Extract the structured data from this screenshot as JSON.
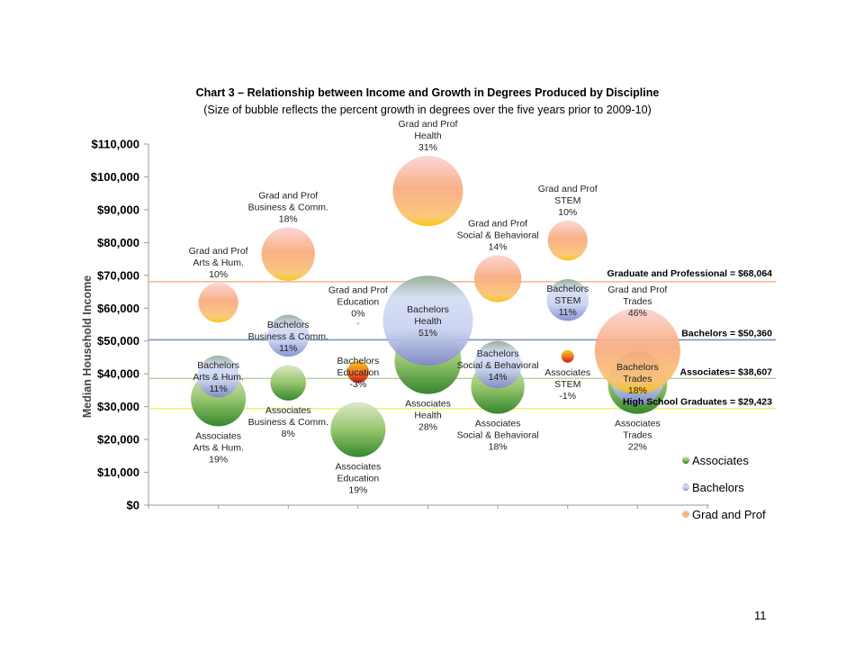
{
  "page_number": "11",
  "chart_data": {
    "type": "bubble",
    "title": "Chart 3 – Relationship between Income and Growth in Degrees Produced by Discipline",
    "subtitle": "(Size of bubble reflects the percent growth in degrees over the five years prior to 2009-10)",
    "ylabel": "Median Household Income",
    "xlabel": "",
    "ylim": [
      0,
      110000
    ],
    "yticks": [
      "$0",
      "$10,000",
      "$20,000",
      "$30,000",
      "$40,000",
      "$50,000",
      "$60,000",
      "$70,000",
      "$80,000",
      "$90,000",
      "$100,000",
      "$110,000"
    ],
    "categories": [
      "Arts & Hum.",
      "Business & Comm.",
      "Education",
      "Health",
      "Social & Behavioral",
      "STEM",
      "Trades"
    ],
    "grid": false,
    "legend": "bottom-right",
    "colors": {
      "Associates": "#3f8f2a",
      "Bachelors": "#8c96d6",
      "Grad and Prof": "#f6a25c"
    },
    "series": [
      {
        "name": "Associates",
        "label_position": "below",
        "points": [
          {
            "category": "Arts & Hum.",
            "income": 32400,
            "growth": 19,
            "label": [
              "Associates",
              "Arts & Hum.",
              "19%"
            ]
          },
          {
            "category": "Business & Comm.",
            "income": 37300,
            "growth": 8,
            "label": [
              "Associates",
              "Business & Comm.",
              "8%"
            ]
          },
          {
            "category": "Education",
            "income": 23000,
            "growth": 19,
            "label": [
              "Associates",
              "Education",
              "19%"
            ]
          },
          {
            "category": "Health",
            "income": 44000,
            "growth": 28,
            "label": [
              "Associates",
              "Health",
              "28%"
            ]
          },
          {
            "category": "Social & Behavioral",
            "income": 36000,
            "growth": 18,
            "label": [
              "Associates",
              "Social & Behavioral",
              "18%"
            ]
          },
          {
            "category": "STEM",
            "income": 45300,
            "growth": -1,
            "label": [
              "Associates",
              "STEM",
              "-1%"
            ]
          },
          {
            "category": "Trades",
            "income": 36800,
            "growth": 22,
            "label": [
              "Associates",
              "Trades",
              "22%"
            ]
          }
        ]
      },
      {
        "name": "Bachelors",
        "label_position": "center",
        "points": [
          {
            "category": "Arts & Hum.",
            "income": 39200,
            "growth": 11,
            "label": [
              "Bachelors",
              "Arts & Hum.",
              "11%"
            ]
          },
          {
            "category": "Business & Comm.",
            "income": 51600,
            "growth": 11,
            "label": [
              "Bachelors",
              "Business & Comm.",
              "11%"
            ]
          },
          {
            "category": "Education",
            "income": 40600,
            "growth": -3,
            "label": [
              "Bachelors",
              "Education",
              "-3%"
            ]
          },
          {
            "category": "Health",
            "income": 56200,
            "growth": 51,
            "label": [
              "Bachelors",
              "Health",
              "51%"
            ]
          },
          {
            "category": "Social & Behavioral",
            "income": 42800,
            "growth": 14,
            "label": [
              "Bachelors",
              "Social & Behavioral",
              "14%"
            ]
          },
          {
            "category": "STEM",
            "income": 62500,
            "growth": 11,
            "label": [
              "Bachelors",
              "STEM",
              "11%"
            ]
          },
          {
            "category": "Trades",
            "income": 38700,
            "growth": 18,
            "label": [
              "Bachelors",
              "Trades",
              "18%"
            ]
          }
        ]
      },
      {
        "name": "Grad and Prof",
        "label_position": "above",
        "points": [
          {
            "category": "Arts & Hum.",
            "income": 61700,
            "growth": 10,
            "label": [
              "Grad and Prof",
              "Arts & Hum.",
              "10%"
            ]
          },
          {
            "category": "Business & Comm.",
            "income": 76500,
            "growth": 18,
            "label": [
              "Grad and Prof",
              "Business & Comm.",
              "18%"
            ]
          },
          {
            "category": "Education",
            "income": 55400,
            "growth": 0,
            "label": [
              "Grad and Prof",
              "Education",
              "0%"
            ]
          },
          {
            "category": "Health",
            "income": 95700,
            "growth": 31,
            "label": [
              "Grad and Prof",
              "Health",
              "31%"
            ]
          },
          {
            "category": "Social & Behavioral",
            "income": 69000,
            "growth": 14,
            "label": [
              "Grad and Prof",
              "Social & Behavioral",
              "14%"
            ]
          },
          {
            "category": "STEM",
            "income": 80600,
            "growth": 10,
            "label": [
              "Grad and Prof",
              "STEM",
              "10%"
            ]
          },
          {
            "category": "Trades",
            "income": 47000,
            "growth": 46,
            "label": [
              "Grad and Prof",
              "Trades",
              "46%"
            ]
          }
        ]
      }
    ],
    "reference_lines": [
      {
        "label": "Graduate and Professional = $68,064",
        "value": 68064,
        "color": "#f7b48a"
      },
      {
        "label": "Bachelors = $50,360",
        "value": 50360,
        "color": "#7d93bf"
      },
      {
        "label": "Associates= $38,607",
        "value": 38607,
        "color": "#b8d49c"
      },
      {
        "label": "High School Graduates = $29,423",
        "value": 29423,
        "color": "#f2f06a"
      }
    ]
  }
}
